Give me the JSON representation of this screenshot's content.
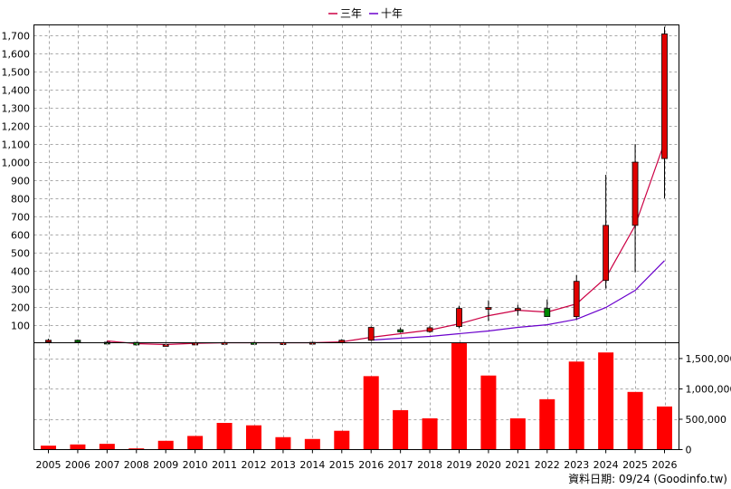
{
  "legend": [
    {
      "label": "三年",
      "color": "#cc0044"
    },
    {
      "label": "十年",
      "color": "#6a00cc"
    }
  ],
  "footer": {
    "text": "資料日期: 09/24  (Goodinfo.tw)"
  },
  "colors": {
    "up": "#e00000",
    "down": "#008800",
    "volume": "#ff0000",
    "grid": "#a8a8a8"
  },
  "chart_data": [
    {
      "type": "candlestick",
      "title": "",
      "x": [
        "2005",
        "2006",
        "2007",
        "2008",
        "2009",
        "2010",
        "2011",
        "2012",
        "2013",
        "2014",
        "2015",
        "2016",
        "2017",
        "2018",
        "2019",
        "2020",
        "2021",
        "2022",
        "2023",
        "2024",
        "2025",
        "2026"
      ],
      "ylim": [
        0,
        1760
      ],
      "yticks": [
        100,
        200,
        300,
        400,
        500,
        600,
        700,
        800,
        900,
        1000,
        1100,
        1200,
        1300,
        1400,
        1500,
        1600,
        1700
      ],
      "grid": true,
      "ohlc": [
        {
          "open": 12,
          "high": 22,
          "low": 8,
          "close": 14
        },
        {
          "open": 14,
          "high": 18,
          "low": 5,
          "close": 3
        },
        {
          "open": 3,
          "high": 8,
          "low": -2,
          "close": 2
        },
        {
          "open": 2,
          "high": -8,
          "low": -16,
          "close": -12
        },
        {
          "open": -12,
          "high": -6,
          "low": -18,
          "close": -10
        },
        {
          "open": -6,
          "high": 2,
          "low": -10,
          "close": -2
        },
        {
          "open": -2,
          "high": 4,
          "low": -6,
          "close": 1
        },
        {
          "open": 1,
          "high": 4,
          "low": -4,
          "close": -1
        },
        {
          "open": -1,
          "high": 2,
          "low": -5,
          "close": 0
        },
        {
          "open": 0,
          "high": 4,
          "low": -3,
          "close": 2
        },
        {
          "open": 2,
          "high": 20,
          "low": -2,
          "close": 14
        },
        {
          "open": 14,
          "high": 90,
          "low": 10,
          "close": 85
        },
        {
          "open": 72,
          "high": 85,
          "low": 55,
          "close": 60
        },
        {
          "open": 62,
          "high": 95,
          "low": 55,
          "close": 83
        },
        {
          "open": 90,
          "high": 205,
          "low": 80,
          "close": 190
        },
        {
          "open": 190,
          "high": 235,
          "low": 120,
          "close": 195
        },
        {
          "open": 180,
          "high": 210,
          "low": 150,
          "close": 190
        },
        {
          "open": 190,
          "high": 240,
          "low": 145,
          "close": 145
        },
        {
          "open": 145,
          "high": 375,
          "low": 130,
          "close": 340
        },
        {
          "open": 345,
          "high": 930,
          "low": 300,
          "close": 650
        },
        {
          "open": 650,
          "high": 1100,
          "low": 390,
          "close": 1000
        },
        {
          "open": 1020,
          "high": 1750,
          "low": 800,
          "close": 1710
        }
      ],
      "series": [
        {
          "name": "三年",
          "color": "#cc0044",
          "values": [
            null,
            null,
            10,
            -5,
            -10,
            -3,
            0,
            0,
            0,
            0,
            5,
            30,
            50,
            70,
            105,
            150,
            180,
            170,
            215,
            360,
            650,
            1110
          ]
        },
        {
          "name": "十年",
          "color": "#6a00cc",
          "values": [
            null,
            null,
            null,
            null,
            null,
            null,
            null,
            null,
            null,
            null,
            null,
            15,
            25,
            35,
            50,
            65,
            85,
            100,
            130,
            195,
            290,
            455
          ]
        }
      ]
    },
    {
      "type": "bar",
      "title": "",
      "x": [
        "2005",
        "2006",
        "2007",
        "2008",
        "2009",
        "2010",
        "2011",
        "2012",
        "2013",
        "2014",
        "2015",
        "2016",
        "2017",
        "2018",
        "2019",
        "2020",
        "2021",
        "2022",
        "2023",
        "2024",
        "2025",
        "2026"
      ],
      "values": [
        65000,
        85000,
        95000,
        20000,
        145000,
        225000,
        440000,
        400000,
        205000,
        175000,
        310000,
        1210000,
        650000,
        515000,
        1760000,
        1220000,
        515000,
        830000,
        1450000,
        1600000,
        950000,
        710000
      ],
      "ylim": [
        0,
        1760000
      ],
      "yticks": [
        0,
        500000,
        1000000,
        1500000
      ],
      "ytick_labels": [
        "0",
        "500,000",
        "1,000,000",
        "1,500,000"
      ],
      "grid": true
    }
  ]
}
